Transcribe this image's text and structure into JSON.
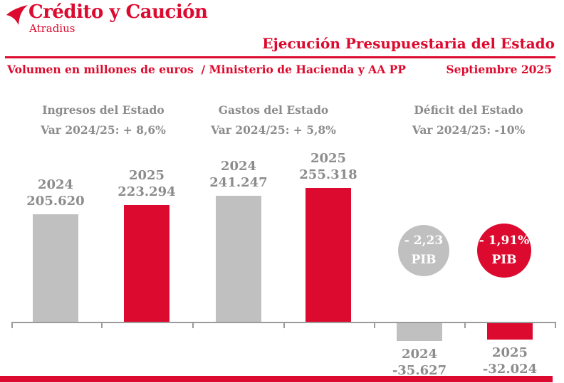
{
  "brand": {
    "name": "Crédito y Caución",
    "sub": "Atradius"
  },
  "header": {
    "title": "Ejecución Presupuestaria del Estado",
    "subtitle_left": "Volumen en millones de euros  / Ministerio de Hacienda y AA PP",
    "subtitle_right": "Septiembre 2025"
  },
  "colors": {
    "red": "#dc0a2e",
    "bar_gray": "#c1c0c0",
    "text_gray": "#8c8c8c",
    "axis_gray": "#9b9b9b"
  },
  "chart_data": {
    "type": "bar",
    "title": "Ejecución Presupuestaria del Estado",
    "period": "Septiembre 2025",
    "unit": "millones de euros",
    "source_label": "Ministerio de Hacienda y AA PP",
    "baseline": 0,
    "grid": false,
    "groups": [
      {
        "title": "Ingresos del Estado",
        "variation_label": "Var 2024/25: + 8,6%",
        "bars": [
          {
            "year": "2024",
            "value": 205620,
            "value_label": "205.620",
            "color": "gray"
          },
          {
            "year": "2025",
            "value": 223294,
            "value_label": "223.294",
            "color": "red"
          }
        ]
      },
      {
        "title": "Gastos del Estado",
        "variation_label": "Var 2024/25: + 5,8%",
        "bars": [
          {
            "year": "2024",
            "value": 241247,
            "value_label": "241.247",
            "color": "gray"
          },
          {
            "year": "2025",
            "value": 255318,
            "value_label": "255.318",
            "color": "red"
          }
        ]
      },
      {
        "title": "Déficit del Estado",
        "variation_label": "Var 2024/25: -10%",
        "bars": [
          {
            "year": "2024",
            "value": -35627,
            "value_label": "-35.627",
            "color": "gray"
          },
          {
            "year": "2025",
            "value": -32024,
            "value_label": "-32.024",
            "color": "red"
          }
        ],
        "badges": [
          {
            "value_label": "- 2,23",
            "sub_label": "PIB",
            "color": "gray"
          },
          {
            "value_label": "- 1,91%",
            "sub_label": "PIB",
            "color": "red"
          }
        ]
      }
    ]
  }
}
